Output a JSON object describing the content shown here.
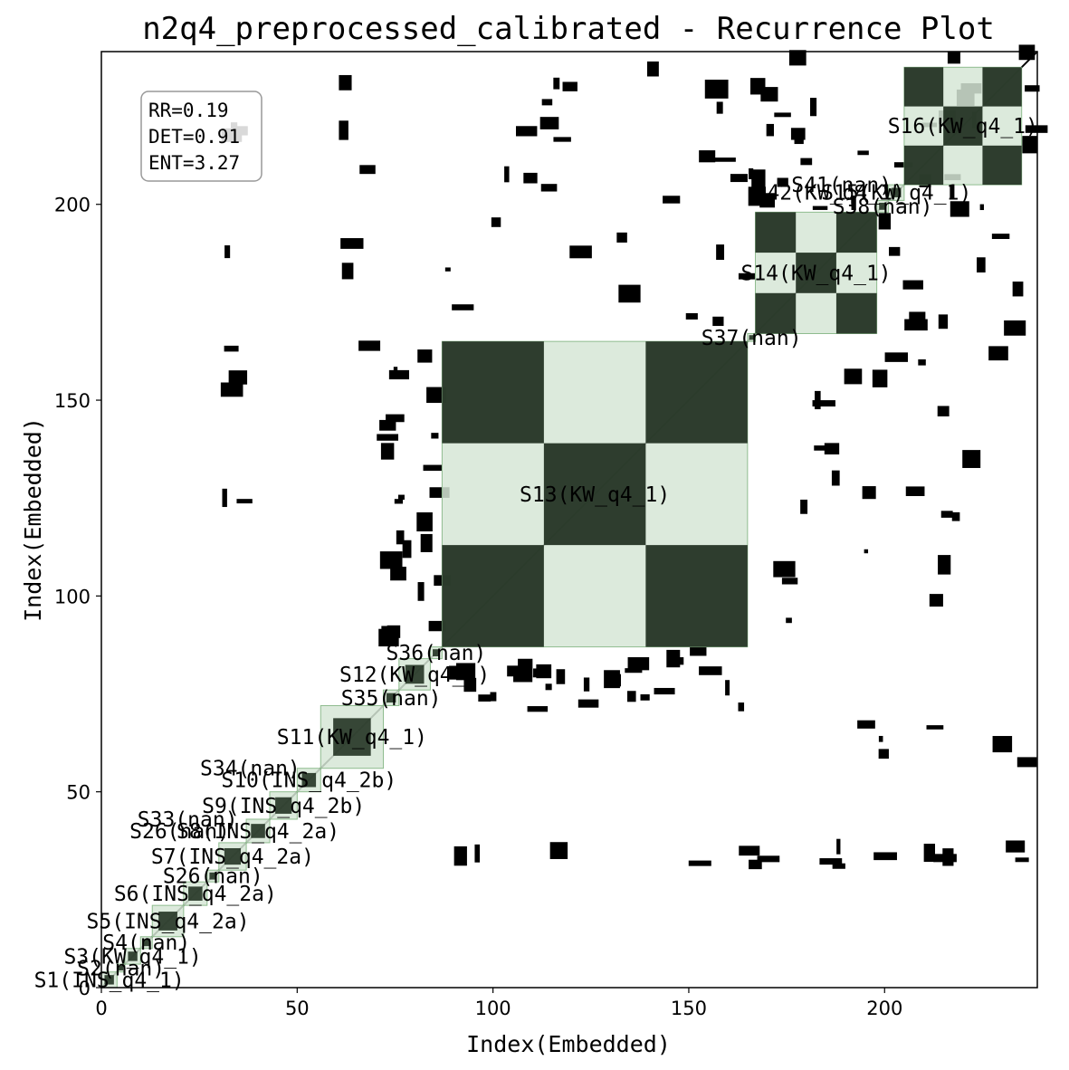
{
  "chart_data": {
    "type": "heatmap",
    "title": "n2q4_preprocessed_calibrated - Recurrence Plot",
    "xlabel": "Index(Embedded)",
    "ylabel": "Index(Embedded)",
    "xlim": [
      0,
      239
    ],
    "ylim": [
      0,
      239
    ],
    "xticks": [
      0,
      50,
      100,
      150,
      200
    ],
    "yticks": [
      0,
      50,
      100,
      150,
      200
    ],
    "colors": {
      "recurrence": "#000000",
      "segment_fill": "#d6e6d6",
      "segment_edge": "#8fbc8f",
      "overlap": "#243424"
    },
    "stats": {
      "rr": "RR=0.19",
      "det": "DET=0.91",
      "ent": "ENT=3.27"
    },
    "segments": [
      {
        "label": "S1(INS_q4_1)",
        "start": 0,
        "end": 4
      },
      {
        "label": "S2(nan)",
        "start": 4,
        "end": 6
      },
      {
        "label": "S3(KW_q4_1)",
        "start": 6,
        "end": 10
      },
      {
        "label": "S4(nan)",
        "start": 10,
        "end": 13
      },
      {
        "label": "S5(INS_q4_2a)",
        "start": 13,
        "end": 21
      },
      {
        "label": "S6(INS_q4_2a)",
        "start": 21,
        "end": 27
      },
      {
        "label": "S26(nan)",
        "start": 27,
        "end": 30
      },
      {
        "label": "S7(INS_q4_2a)",
        "start": 30,
        "end": 37
      },
      {
        "label": "S8(INS_q4_2a)",
        "start": 37,
        "end": 43
      },
      {
        "label": "S9(INS_q4_2b)",
        "start": 43,
        "end": 50
      },
      {
        "label": "S10(INS_q4_2b)",
        "start": 50,
        "end": 56
      },
      {
        "label": "S11(KW_q4_1)",
        "start": 56,
        "end": 72
      },
      {
        "label": "S35(nan)",
        "start": 72,
        "end": 76
      },
      {
        "label": "S12(KW_q4_1)",
        "start": 76,
        "end": 84
      },
      {
        "label": "S36(nan)",
        "start": 84,
        "end": 87
      },
      {
        "label": "S13(KW_q4_1)",
        "start": 87,
        "end": 165
      },
      {
        "label": "S37(nan)",
        "start": 165,
        "end": 167
      },
      {
        "label": "S14(KW_q4_1)",
        "start": 167,
        "end": 198
      },
      {
        "label": "S38(nan)",
        "start": 198,
        "end": 201
      },
      {
        "label": "S15(KW_q4_1)",
        "start": 201,
        "end": 205
      },
      {
        "label": "S16(KW_q4_1)",
        "start": 205,
        "end": 235
      }
    ],
    "extra_labels": [
      {
        "label": "S26(nan)",
        "x": 20,
        "y": 40
      },
      {
        "label": "S33(nan)",
        "x": 22,
        "y": 43
      },
      {
        "label": "S34(nan)",
        "x": 38,
        "y": 56
      },
      {
        "label": "S41(nan)",
        "x": 189,
        "y": 205
      },
      {
        "label": "S42(KW_q4_1)",
        "x": 186,
        "y": 203
      }
    ],
    "grid": false,
    "legend": "none"
  }
}
